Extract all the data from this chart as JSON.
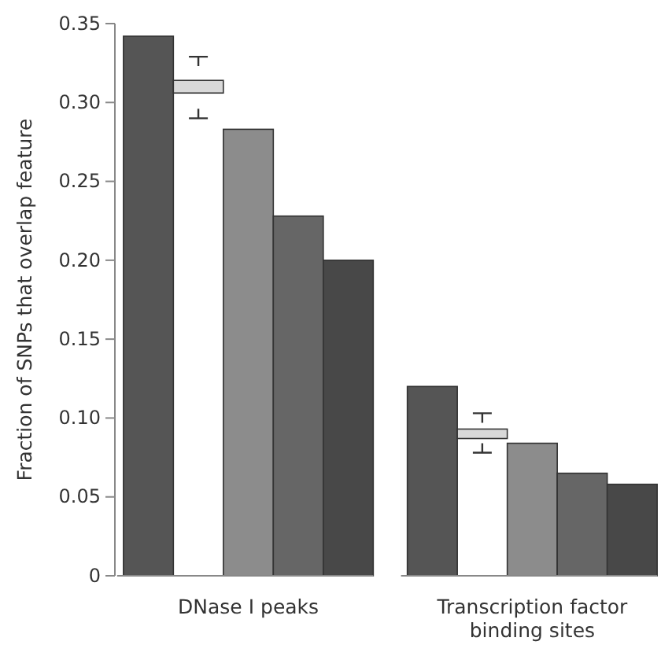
{
  "chart_data": {
    "type": "bar",
    "ylabel": "Fraction of SNPs that overlap feature",
    "categories": [
      "DNase I peaks",
      "Transcription factor binding sites"
    ],
    "series": [
      {
        "color": "#555555",
        "values": [
          0.342,
          0.12
        ]
      },
      {
        "color": "#d9d9d9",
        "base": [
          0.306,
          0.087
        ],
        "values": [
          0.008,
          0.006
        ],
        "errors": [
          [
            0.29,
            0.329
          ],
          [
            0.078,
            0.103
          ]
        ]
      },
      {
        "color": "#8c8c8c",
        "values": [
          0.283,
          0.084
        ]
      },
      {
        "color": "#666666",
        "values": [
          0.228,
          0.065
        ]
      },
      {
        "color": "#484848",
        "values": [
          0.2,
          0.058
        ]
      }
    ],
    "ylim": [
      0,
      0.35
    ],
    "yticks": [
      {
        "value": 0,
        "label": "0"
      },
      {
        "value": 0.05,
        "label": "0.05"
      },
      {
        "value": 0.1,
        "label": "0.10"
      },
      {
        "value": 0.15,
        "label": "0.15"
      },
      {
        "value": 0.2,
        "label": "0.20"
      },
      {
        "value": 0.25,
        "label": "0.25"
      },
      {
        "value": 0.3,
        "label": "0.30"
      },
      {
        "value": 0.35,
        "label": "0.35"
      }
    ],
    "grid": false
  }
}
